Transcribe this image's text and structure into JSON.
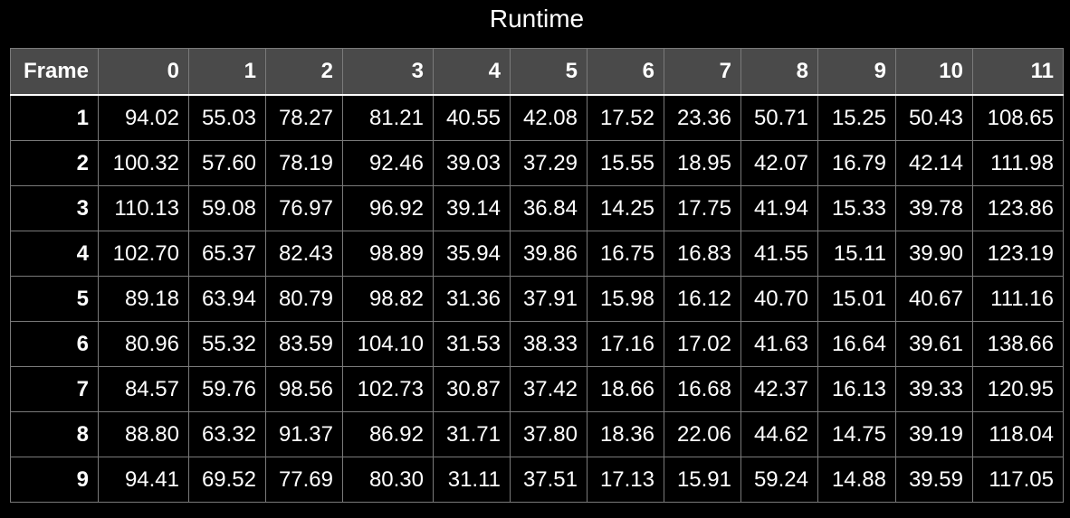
{
  "chart_data": {
    "type": "table",
    "title": "Runtime",
    "corner_label": "Frame",
    "columns": [
      "0",
      "1",
      "2",
      "3",
      "4",
      "5",
      "6",
      "7",
      "8",
      "9",
      "10",
      "11"
    ],
    "rows": [
      {
        "label": "1",
        "values": [
          "94.02",
          "55.03",
          "78.27",
          "81.21",
          "40.55",
          "42.08",
          "17.52",
          "23.36",
          "50.71",
          "15.25",
          "50.43",
          "108.65"
        ]
      },
      {
        "label": "2",
        "values": [
          "100.32",
          "57.60",
          "78.19",
          "92.46",
          "39.03",
          "37.29",
          "15.55",
          "18.95",
          "42.07",
          "16.79",
          "42.14",
          "111.98"
        ]
      },
      {
        "label": "3",
        "values": [
          "110.13",
          "59.08",
          "76.97",
          "96.92",
          "39.14",
          "36.84",
          "14.25",
          "17.75",
          "41.94",
          "15.33",
          "39.78",
          "123.86"
        ]
      },
      {
        "label": "4",
        "values": [
          "102.70",
          "65.37",
          "82.43",
          "98.89",
          "35.94",
          "39.86",
          "16.75",
          "16.83",
          "41.55",
          "15.11",
          "39.90",
          "123.19"
        ]
      },
      {
        "label": "5",
        "values": [
          "89.18",
          "63.94",
          "80.79",
          "98.82",
          "31.36",
          "37.91",
          "15.98",
          "16.12",
          "40.70",
          "15.01",
          "40.67",
          "111.16"
        ]
      },
      {
        "label": "6",
        "values": [
          "80.96",
          "55.32",
          "83.59",
          "104.10",
          "31.53",
          "38.33",
          "17.16",
          "17.02",
          "41.63",
          "16.64",
          "39.61",
          "138.66"
        ]
      },
      {
        "label": "7",
        "values": [
          "84.57",
          "59.76",
          "98.56",
          "102.73",
          "30.87",
          "37.42",
          "18.66",
          "16.68",
          "42.37",
          "16.13",
          "39.33",
          "120.95"
        ]
      },
      {
        "label": "8",
        "values": [
          "88.80",
          "63.32",
          "91.37",
          "86.92",
          "31.71",
          "37.80",
          "18.36",
          "22.06",
          "44.62",
          "14.75",
          "39.19",
          "118.04"
        ]
      },
      {
        "label": "9",
        "values": [
          "94.41",
          "69.52",
          "77.69",
          "80.30",
          "31.11",
          "37.51",
          "17.13",
          "15.91",
          "59.24",
          "14.88",
          "39.59",
          "117.05"
        ]
      }
    ]
  },
  "colors": {
    "background": "#000000",
    "header_background": "#4a4a4a",
    "grid_line": "#7a7a7a",
    "text": "#ffffff"
  }
}
